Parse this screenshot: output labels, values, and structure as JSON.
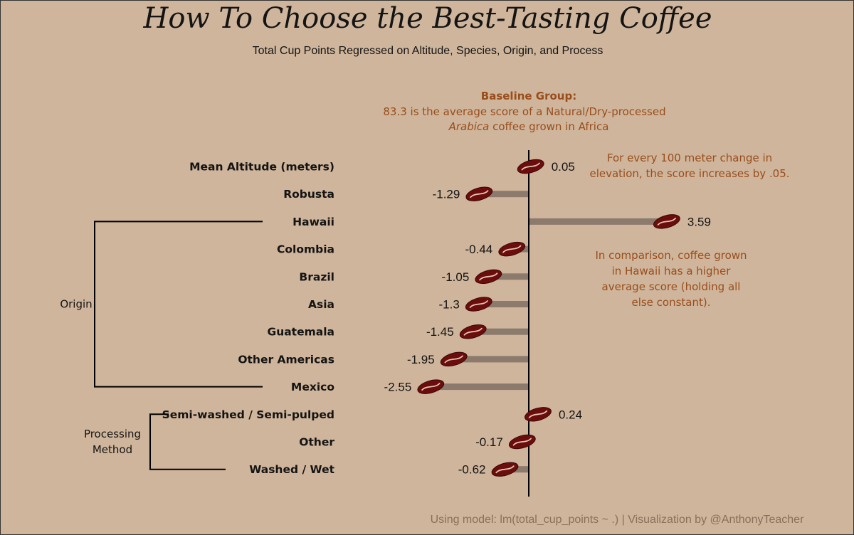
{
  "chart_data": {
    "type": "bar",
    "title": "How To Choose the Best-Tasting Coffee",
    "subtitle": "Total Cup Points Regressed on Altitude, Species, Origin, and Process",
    "categories": [
      "Mean Altitude (meters)",
      "Robusta",
      "Hawaii",
      "Colombia",
      "Brazil",
      "Asia",
      "Guatemala",
      "Other Americas",
      "Mexico",
      "Semi-washed / Semi-pulped",
      "Other",
      "Washed / Wet"
    ],
    "values": [
      0.05,
      -1.29,
      3.59,
      -0.44,
      -1.05,
      -1.3,
      -1.45,
      -1.95,
      -2.55,
      0.24,
      -0.17,
      -0.62
    ],
    "value_labels": [
      "0.05",
      "-1.29",
      "3.59",
      "-0.44",
      "-1.05",
      "-1.3",
      "-1.45",
      "-1.95",
      "-2.55",
      "0.24",
      "-0.17",
      "-0.62"
    ],
    "groups": [
      {
        "label": "Origin",
        "from": 2,
        "to": 8
      },
      {
        "label_lines": [
          "Processing",
          "Method"
        ],
        "from": 9,
        "to": 11
      }
    ],
    "annotations": {
      "baseline_title": "Baseline Group:",
      "baseline_line1": "83.3 is the average score of a Natural/Dry-processed",
      "baseline_line2_italic": "Arabica",
      "baseline_line2_rest": " coffee grown in Africa",
      "altitude_note": [
        "For every 100 meter change in",
        "elevation, the score increases by .05."
      ],
      "hawaii_note": [
        "In comparison, coffee grown",
        "in Hawaii has a higher",
        "average score (holding all",
        "else constant)."
      ]
    },
    "footer": "Using model: lm(total_cup_points ~ .) | Visualization by @AnthonyTeacher",
    "colors": {
      "background": "#cfb59b",
      "bar": "#8c7b6c",
      "bean": "#6b0d0d",
      "annotation": "#9a4d1c"
    }
  }
}
